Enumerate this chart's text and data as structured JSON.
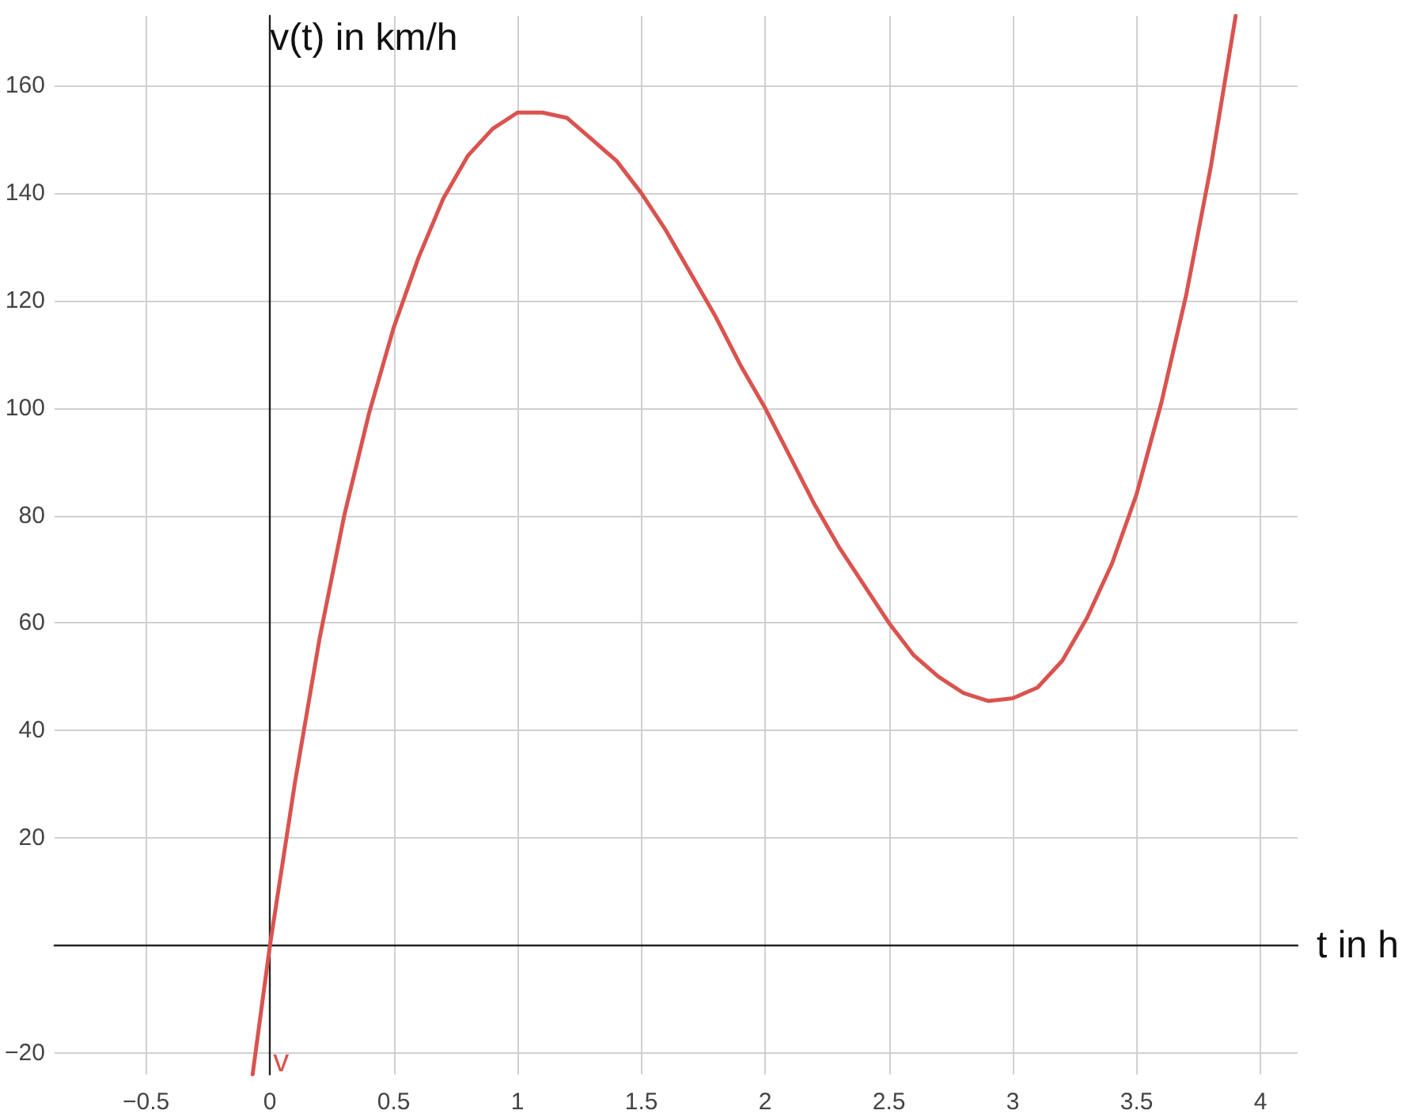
{
  "chart_data": {
    "type": "line",
    "xlabel": "t in h",
    "ylabel": "v(t) in km/h",
    "x": [
      -0.07,
      0,
      0.1,
      0.2,
      0.3,
      0.4,
      0.5,
      0.6,
      0.7,
      0.8,
      0.9,
      1.0,
      1.1,
      1.2,
      1.3,
      1.4,
      1.5,
      1.6,
      1.7,
      1.8,
      1.9,
      2.0,
      2.1,
      2.2,
      2.3,
      2.4,
      2.5,
      2.6,
      2.7,
      2.8,
      2.9,
      3.0,
      3.1,
      3.2,
      3.3,
      3.4,
      3.5,
      3.6,
      3.7,
      3.8,
      3.9
    ],
    "series": [
      {
        "name": "v",
        "color": "#d9534f",
        "values": [
          -24,
          0,
          30,
          57,
          80,
          99,
          115,
          128,
          139,
          147,
          152,
          155,
          155,
          154,
          150,
          146,
          140,
          133,
          125,
          117,
          108,
          100,
          91,
          82,
          74,
          67,
          60,
          54,
          50,
          47,
          45.5,
          46,
          48,
          53,
          61,
          71,
          84,
          101,
          121,
          145,
          173
        ]
      }
    ],
    "xlim": [
      -0.87,
      4.15
    ],
    "ylim": [
      -24,
      173
    ],
    "xticks": [
      {
        "value": -0.5,
        "label": "−0.5"
      },
      0,
      0.5,
      1,
      1.5,
      2,
      2.5,
      3,
      3.5,
      4
    ],
    "yticks": [
      {
        "value": -20,
        "label": "−20"
      },
      {
        "value": 0,
        "label": null
      },
      20,
      40,
      60,
      80,
      100,
      120,
      140,
      160
    ],
    "grid": true,
    "legend": false,
    "marker": "none",
    "line_style": "solid"
  }
}
